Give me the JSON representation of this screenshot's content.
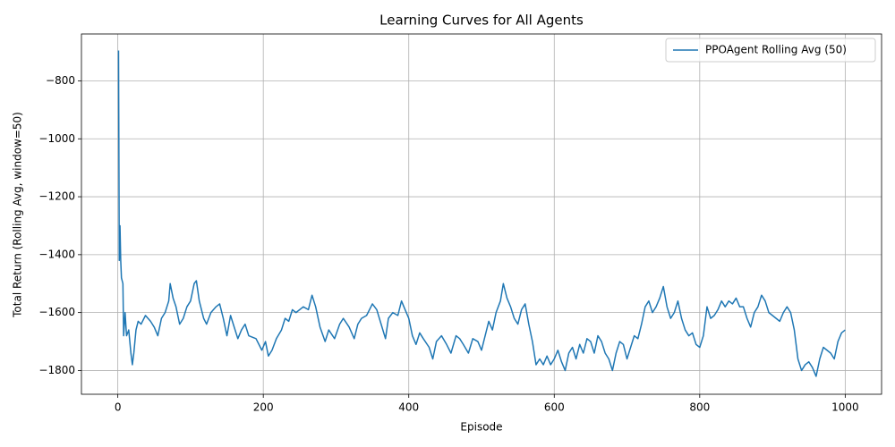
{
  "chart_data": {
    "type": "line",
    "title": "Learning Curves for All Agents",
    "xlabel": "Episode",
    "ylabel": "Total Return (Rolling Avg, window=50)",
    "x": [
      1,
      2,
      3,
      4,
      5,
      7,
      8,
      10,
      12,
      15,
      18,
      20,
      22,
      25,
      28,
      32,
      38,
      45,
      50,
      55,
      60,
      65,
      70,
      72,
      76,
      80,
      85,
      90,
      95,
      100,
      105,
      108,
      112,
      118,
      122,
      128,
      135,
      140,
      145,
      150,
      155,
      160,
      165,
      170,
      175,
      180,
      190,
      198,
      203,
      207,
      212,
      218,
      225,
      230,
      235,
      240,
      245,
      255,
      262,
      267,
      272,
      278,
      285,
      290,
      298,
      305,
      310,
      318,
      325,
      330,
      335,
      342,
      350,
      356,
      362,
      368,
      372,
      378,
      385,
      390,
      395,
      400,
      405,
      410,
      415,
      420,
      428,
      433,
      438,
      445,
      452,
      458,
      465,
      470,
      475,
      482,
      488,
      495,
      500,
      505,
      510,
      515,
      520,
      526,
      530,
      535,
      540,
      545,
      550,
      555,
      560,
      565,
      570,
      575,
      580,
      585,
      590,
      595,
      600,
      605,
      610,
      615,
      620,
      625,
      630,
      635,
      640,
      645,
      650,
      655,
      660,
      665,
      670,
      675,
      680,
      685,
      690,
      695,
      700,
      705,
      710,
      715,
      720,
      725,
      730,
      735,
      740,
      745,
      750,
      755,
      760,
      765,
      770,
      775,
      780,
      785,
      790,
      795,
      800,
      805,
      810,
      815,
      820,
      825,
      830,
      835,
      840,
      845,
      850,
      855,
      860,
      865,
      870,
      875,
      880,
      885,
      890,
      895,
      900,
      905,
      910,
      915,
      920,
      925,
      930,
      935,
      940,
      945,
      950,
      955,
      960,
      965,
      970,
      975,
      980,
      985,
      990,
      995,
      1000
    ],
    "series": [
      {
        "name": "PPOAgent Rolling Avg (50)",
        "color": "#1f77b4",
        "values": [
          -695,
          -1420,
          -1300,
          -1420,
          -1480,
          -1500,
          -1680,
          -1600,
          -1680,
          -1660,
          -1740,
          -1780,
          -1740,
          -1660,
          -1630,
          -1640,
          -1610,
          -1630,
          -1650,
          -1680,
          -1620,
          -1600,
          -1560,
          -1500,
          -1550,
          -1580,
          -1640,
          -1620,
          -1580,
          -1560,
          -1500,
          -1490,
          -1560,
          -1620,
          -1640,
          -1600,
          -1580,
          -1570,
          -1620,
          -1680,
          -1610,
          -1650,
          -1690,
          -1660,
          -1640,
          -1680,
          -1690,
          -1730,
          -1700,
          -1750,
          -1730,
          -1690,
          -1660,
          -1620,
          -1630,
          -1590,
          -1600,
          -1580,
          -1590,
          -1540,
          -1580,
          -1650,
          -1700,
          -1660,
          -1690,
          -1640,
          -1620,
          -1650,
          -1690,
          -1640,
          -1620,
          -1610,
          -1570,
          -1590,
          -1640,
          -1690,
          -1620,
          -1600,
          -1610,
          -1560,
          -1590,
          -1620,
          -1680,
          -1710,
          -1670,
          -1690,
          -1720,
          -1760,
          -1700,
          -1680,
          -1710,
          -1740,
          -1680,
          -1690,
          -1710,
          -1740,
          -1690,
          -1700,
          -1730,
          -1680,
          -1630,
          -1660,
          -1600,
          -1560,
          -1500,
          -1550,
          -1580,
          -1620,
          -1640,
          -1590,
          -1570,
          -1640,
          -1700,
          -1780,
          -1760,
          -1780,
          -1750,
          -1780,
          -1760,
          -1730,
          -1770,
          -1800,
          -1740,
          -1720,
          -1760,
          -1710,
          -1740,
          -1690,
          -1700,
          -1740,
          -1680,
          -1700,
          -1740,
          -1760,
          -1800,
          -1740,
          -1700,
          -1710,
          -1760,
          -1720,
          -1680,
          -1690,
          -1640,
          -1580,
          -1560,
          -1600,
          -1580,
          -1550,
          -1510,
          -1580,
          -1620,
          -1600,
          -1560,
          -1620,
          -1660,
          -1680,
          -1670,
          -1710,
          -1720,
          -1680,
          -1580,
          -1620,
          -1610,
          -1590,
          -1560,
          -1580,
          -1560,
          -1570,
          -1550,
          -1580,
          -1580,
          -1620,
          -1650,
          -1600,
          -1580,
          -1540,
          -1560,
          -1600,
          -1610,
          -1620,
          -1630,
          -1600,
          -1580,
          -1600,
          -1660,
          -1760,
          -1800,
          -1780,
          -1770,
          -1790,
          -1820,
          -1760,
          -1720,
          -1730,
          -1740,
          -1760,
          -1700,
          -1670,
          -1660
        ]
      }
    ],
    "xlim": [
      -50,
      1050
    ],
    "ylim": [
      -1882,
      -638
    ],
    "xticks": [
      0,
      200,
      400,
      600,
      800,
      1000
    ],
    "yticks": [
      {
        "value": -1800,
        "label": "−1800"
      },
      {
        "value": -1600,
        "label": "−1600"
      },
      {
        "value": -1400,
        "label": "−1400"
      },
      {
        "value": -1200,
        "label": "−1200"
      },
      {
        "value": -1000,
        "label": "−1000"
      },
      {
        "value": -800,
        "label": "−800"
      }
    ],
    "grid": true,
    "legend": "upper right"
  }
}
